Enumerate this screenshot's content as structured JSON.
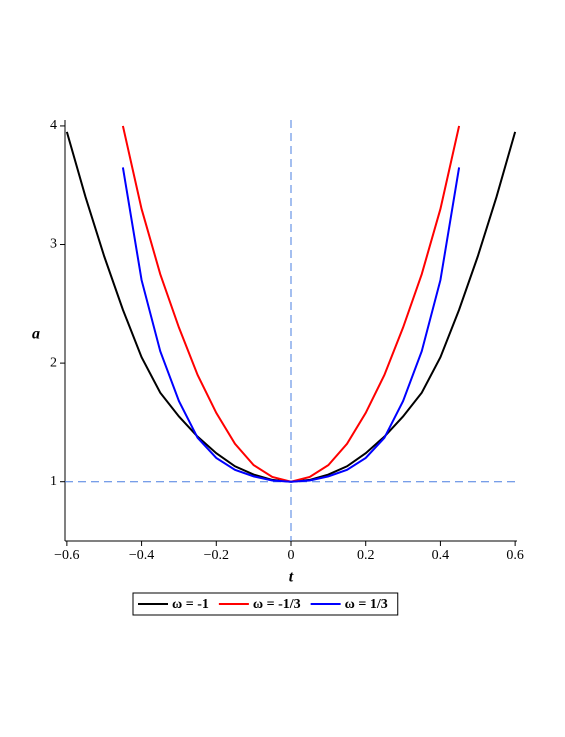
{
  "chart_data": {
    "type": "line",
    "x_label": "t",
    "y_label": "a",
    "x": [
      -0.6,
      -0.55,
      -0.5,
      -0.45,
      -0.4,
      -0.35,
      -0.3,
      -0.25,
      -0.2,
      -0.15,
      -0.1,
      -0.05,
      0,
      0.05,
      0.1,
      0.15,
      0.2,
      0.25,
      0.3,
      0.35,
      0.4,
      0.45,
      0.5,
      0.55,
      0.6
    ],
    "series": [
      {
        "name": "ω = -1",
        "color": "#000000",
        "values": [
          3.95,
          3.4,
          2.9,
          2.45,
          2.05,
          1.75,
          1.55,
          1.38,
          1.24,
          1.13,
          1.06,
          1.015,
          1,
          1.015,
          1.06,
          1.13,
          1.24,
          1.38,
          1.55,
          1.75,
          2.05,
          2.45,
          2.9,
          3.4,
          3.95
        ]
      },
      {
        "name": "ω = -1/3",
        "color": "#ff0000",
        "values": [
          null,
          null,
          null,
          4.0,
          3.3,
          2.75,
          2.3,
          1.9,
          1.58,
          1.32,
          1.14,
          1.04,
          1,
          1.04,
          1.14,
          1.32,
          1.58,
          1.9,
          2.3,
          2.75,
          3.3,
          4.0,
          null,
          null,
          null
        ]
      },
      {
        "name": "ω = 1/3",
        "color": "#0000ff",
        "values": [
          null,
          null,
          null,
          3.65,
          2.7,
          2.1,
          1.68,
          1.37,
          1.2,
          1.1,
          1.045,
          1.01,
          1,
          1.01,
          1.045,
          1.1,
          1.2,
          1.37,
          1.68,
          2.1,
          2.7,
          3.65,
          null,
          null,
          null
        ]
      }
    ],
    "xlim": [
      -0.605,
      0.605
    ],
    "ylim": [
      0.5,
      4.05
    ],
    "xticks": [
      {
        "value": -0.6,
        "label": "−0.6"
      },
      {
        "value": -0.4,
        "label": "−0.4"
      },
      {
        "value": -0.2,
        "label": "−0.2"
      },
      0,
      0.2,
      0.4,
      0.6
    ],
    "yticks": [
      1,
      2,
      3,
      4
    ],
    "hlines": [
      1
    ],
    "vlines": [
      0
    ],
    "reference_color": "#4a7fe0",
    "legend": "bottom"
  }
}
